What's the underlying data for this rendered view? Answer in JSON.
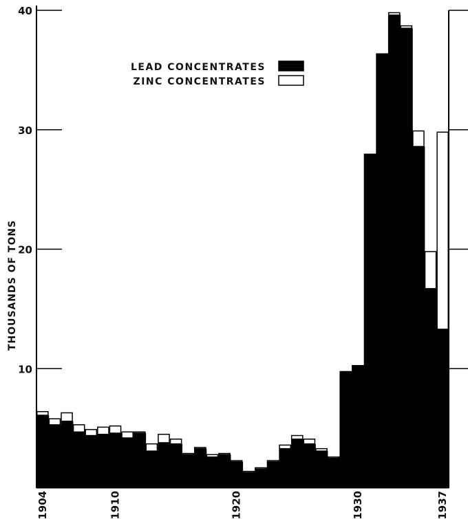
{
  "chart_data": {
    "type": "bar",
    "stacked": true,
    "ylabel": "THOUSANDS OF TONS",
    "ylim": [
      0,
      40
    ],
    "yticks": [
      10,
      20,
      30,
      40
    ],
    "xticks": [
      "1904",
      "1910",
      "1920",
      "1930",
      "1937"
    ],
    "categories": [
      "1904",
      "1905",
      "1906",
      "1907",
      "1908",
      "1909",
      "1910",
      "1911",
      "1912",
      "1913",
      "1914",
      "1915",
      "1916",
      "1917",
      "1918",
      "1919",
      "1920",
      "1921",
      "1922",
      "1923",
      "1924",
      "1925",
      "1926",
      "1927",
      "1928",
      "1929",
      "1930",
      "1931",
      "1932",
      "1933",
      "1934",
      "1935",
      "1936",
      "1937"
    ],
    "series": [
      {
        "name": "LEAD CONCENTRATES",
        "color": "#000000",
        "values": [
          6.1,
          5.3,
          5.6,
          4.7,
          4.4,
          4.5,
          4.6,
          4.2,
          4.6,
          3.1,
          3.8,
          3.7,
          2.8,
          3.3,
          2.6,
          2.8,
          2.2,
          1.3,
          1.6,
          2.2,
          3.3,
          4.1,
          3.7,
          3.1,
          2.5,
          9.8,
          10.3,
          28.0,
          36.4,
          39.6,
          38.5,
          28.6,
          16.7,
          13.3
        ]
      },
      {
        "name": "ZINC CONCENTRATES",
        "color": "#ffffff",
        "values": [
          0.3,
          0.5,
          0.7,
          0.6,
          0.5,
          0.6,
          0.6,
          0.5,
          0.1,
          0.6,
          0.7,
          0.4,
          0.1,
          0.1,
          0.2,
          0.1,
          0.1,
          0.1,
          0.1,
          0.1,
          0.3,
          0.3,
          0.4,
          0.2,
          0.1,
          0.0,
          0.0,
          0.0,
          0.0,
          0.2,
          0.2,
          1.3,
          3.1,
          16.5
        ]
      }
    ],
    "right_axis": {
      "ticks": [
        10,
        20,
        30,
        40
      ]
    },
    "legend": {
      "placement": "top-left",
      "entries": [
        "LEAD CONCENTRATES",
        "ZINC CONCENTRATES"
      ]
    }
  }
}
